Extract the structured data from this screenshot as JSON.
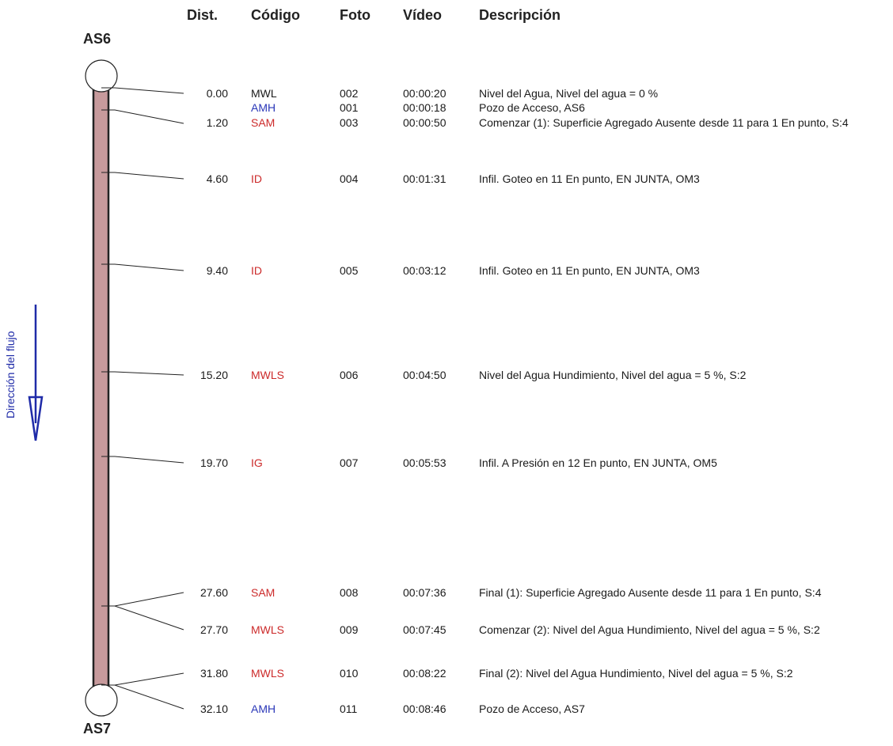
{
  "headers": {
    "dist": "Dist.",
    "code": "Código",
    "photo": "Foto",
    "video": "Vídeo",
    "description": "Descripción"
  },
  "start_manhole": "AS6",
  "end_manhole": "AS7",
  "flow_label": "Dirección del flujo",
  "colors": {
    "pipe": "#c79a9c",
    "code_red": "#cc2a2a",
    "code_blue": "#2a37b8",
    "code_black": "#1a1a1a",
    "flow_arrow": "#1f2ba8"
  },
  "observations": [
    {
      "dist": "0.00",
      "code": "MWL",
      "code_color": "black",
      "photo": "002",
      "video": "00:00:20",
      "description": "Nivel del Agua, Nivel del agua = 0 %"
    },
    {
      "dist": "",
      "code": "AMH",
      "code_color": "blue",
      "photo": "001",
      "video": "00:00:18",
      "description": "Pozo de Acceso, AS6"
    },
    {
      "dist": "1.20",
      "code": "SAM",
      "code_color": "red",
      "photo": "003",
      "video": "00:00:50",
      "description": "Comenzar (1): Superficie Agregado Ausente desde 11 para 1 En punto, S:4"
    },
    {
      "dist": "4.60",
      "code": "ID",
      "code_color": "red",
      "photo": "004",
      "video": "00:01:31",
      "description": "Infil. Goteo en 11 En punto, EN JUNTA, OM3"
    },
    {
      "dist": "9.40",
      "code": "ID",
      "code_color": "red",
      "photo": "005",
      "video": "00:03:12",
      "description": "Infil. Goteo en 11 En punto, EN JUNTA, OM3"
    },
    {
      "dist": "15.20",
      "code": "MWLS",
      "code_color": "red",
      "photo": "006",
      "video": "00:04:50",
      "description": "Nivel del Agua Hundimiento, Nivel del agua = 5 %, S:2"
    },
    {
      "dist": "19.70",
      "code": "IG",
      "code_color": "red",
      "photo": "007",
      "video": "00:05:53",
      "description": "Infil. A Presión en 12 En punto, EN JUNTA, OM5"
    },
    {
      "dist": "27.60",
      "code": "SAM",
      "code_color": "red",
      "photo": "008",
      "video": "00:07:36",
      "description": "Final (1): Superficie Agregado Ausente desde 11 para 1 En punto, S:4"
    },
    {
      "dist": "27.70",
      "code": "MWLS",
      "code_color": "red",
      "photo": "009",
      "video": "00:07:45",
      "description": "Comenzar (2): Nivel del Agua Hundimiento, Nivel del agua = 5 %, S:2"
    },
    {
      "dist": "31.80",
      "code": "MWLS",
      "code_color": "red",
      "photo": "010",
      "video": "00:08:22",
      "description": "Final (2): Nivel del Agua Hundimiento, Nivel del agua = 5 %, S:2"
    },
    {
      "dist": "32.10",
      "code": "AMH",
      "code_color": "blue",
      "photo": "011",
      "video": "00:08:46",
      "description": "Pozo de Acceso, AS7"
    }
  ]
}
